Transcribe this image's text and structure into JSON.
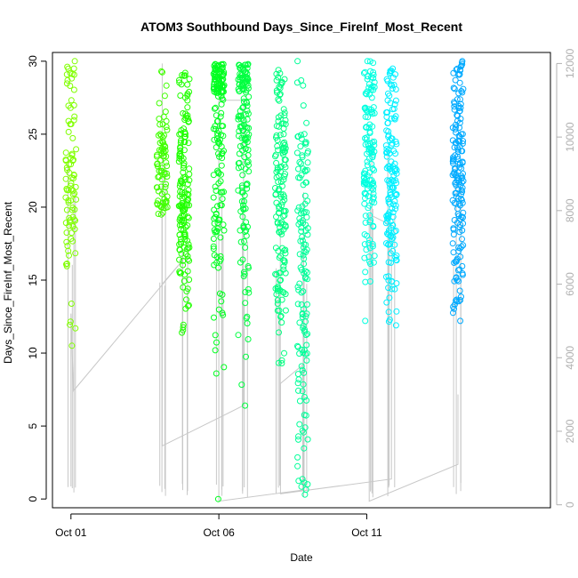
{
  "chart_data": {
    "type": "scatter",
    "title": "ATOM3 Southbound Days_Since_FireInf_Most_Recent",
    "xlabel": "Date",
    "ylabel": "Days_Since_FireInf_Most_Recent",
    "xlim": [
      "2019-09-30T09:00",
      "2019-10-17T05:00"
    ],
    "ylim": [
      -0.6,
      30.6
    ],
    "y2lim": [
      -80,
      12300
    ],
    "x_ticks": [
      {
        "label": "Oct 01",
        "value": "2019-10-01T00:00"
      },
      {
        "label": "Oct 06",
        "value": "2019-10-06T00:00"
      },
      {
        "label": "Oct 11",
        "value": "2019-10-11T00:00"
      }
    ],
    "y_ticks": [
      0,
      5,
      10,
      15,
      20,
      25,
      30
    ],
    "y2_ticks": [
      0,
      2000,
      4000,
      6000,
      8000,
      10000,
      12000
    ],
    "grid": false,
    "legend": "none",
    "colors": {
      "axis": "#000000",
      "secondary_axis": "#b0b0b0",
      "secondary_line": "#c8c8c8"
    },
    "clusters": [
      {
        "x": "2019-10-01T00:00",
        "color": "#80ff00",
        "ymin": 10.5,
        "ymax": 30.0,
        "ycenter": 22.0,
        "n": 90
      },
      {
        "x": "2019-10-04T02:00",
        "color": "#40ff00",
        "ymin": 19.5,
        "ymax": 29.3,
        "ycenter": 23.0,
        "n": 80
      },
      {
        "x": "2019-10-04T20:00",
        "color": "#20ff00",
        "ymin": 11.4,
        "ymax": 29.2,
        "ycenter": 21.0,
        "n": 160
      },
      {
        "x": "2019-10-06T00:00",
        "color": "#00ff20",
        "ymin": 0.0,
        "ymax": 29.8,
        "ycenter": 25.0,
        "n": 170
      },
      {
        "x": "2019-10-06T20:00",
        "color": "#00ff40",
        "ymin": 6.4,
        "ymax": 29.8,
        "ycenter": 24.5,
        "n": 160
      },
      {
        "x": "2019-10-08T02:00",
        "color": "#00ff80",
        "ymin": 9.3,
        "ymax": 29.4,
        "ycenter": 20.0,
        "n": 150
      },
      {
        "x": "2019-10-08T20:00",
        "color": "#00ff99",
        "ymin": 0.3,
        "ymax": 30.0,
        "ycenter": 15.0,
        "n": 140
      },
      {
        "x": "2019-10-11T02:00",
        "color": "#00ffe0",
        "ymin": 12.2,
        "ymax": 30.0,
        "ycenter": 23.0,
        "n": 140
      },
      {
        "x": "2019-10-11T20:00",
        "color": "#00f0ff",
        "ymin": 11.9,
        "ymax": 29.5,
        "ycenter": 22.0,
        "n": 150
      },
      {
        "x": "2019-10-14T02:00",
        "color": "#00aaff",
        "ymin": 12.2,
        "ymax": 30.0,
        "ycenter": 22.5,
        "n": 170
      }
    ],
    "secondary_series": {
      "comment_free_path": [
        {
          "x": "2019-10-01T00:00",
          "y2": 500
        },
        {
          "x": "2019-10-01T00:00",
          "y2": 5200
        },
        {
          "x": "2019-10-01T02:00",
          "y2": 3100
        },
        {
          "x": "2019-10-04T20:00",
          "y2": 6700
        },
        {
          "x": "2019-10-04T02:00",
          "y2": 6000
        },
        {
          "x": "2019-10-04T02:00",
          "y2": 12000
        },
        {
          "x": "2019-10-04T02:00",
          "y2": 1600
        },
        {
          "x": "2019-10-06T20:00",
          "y2": 2700
        },
        {
          "x": "2019-10-06T20:00",
          "y2": 11000
        },
        {
          "x": "2019-10-06T00:00",
          "y2": 11000
        },
        {
          "x": "2019-10-06T00:00",
          "y2": 100
        },
        {
          "x": "2019-10-08T20:00",
          "y2": 400
        },
        {
          "x": "2019-10-08T20:00",
          "y2": 3800
        },
        {
          "x": "2019-10-08T02:00",
          "y2": 3300
        },
        {
          "x": "2019-10-08T02:00",
          "y2": 300
        },
        {
          "x": "2019-10-11T20:00",
          "y2": 700
        },
        {
          "x": "2019-10-11T20:00",
          "y2": 7600
        },
        {
          "x": "2019-10-11T02:00",
          "y2": 7900
        },
        {
          "x": "2019-10-11T02:00",
          "y2": 100
        },
        {
          "x": "2019-10-14T02:00",
          "y2": 1100
        },
        {
          "x": "2019-10-14T02:00",
          "y2": 3000
        }
      ]
    }
  }
}
